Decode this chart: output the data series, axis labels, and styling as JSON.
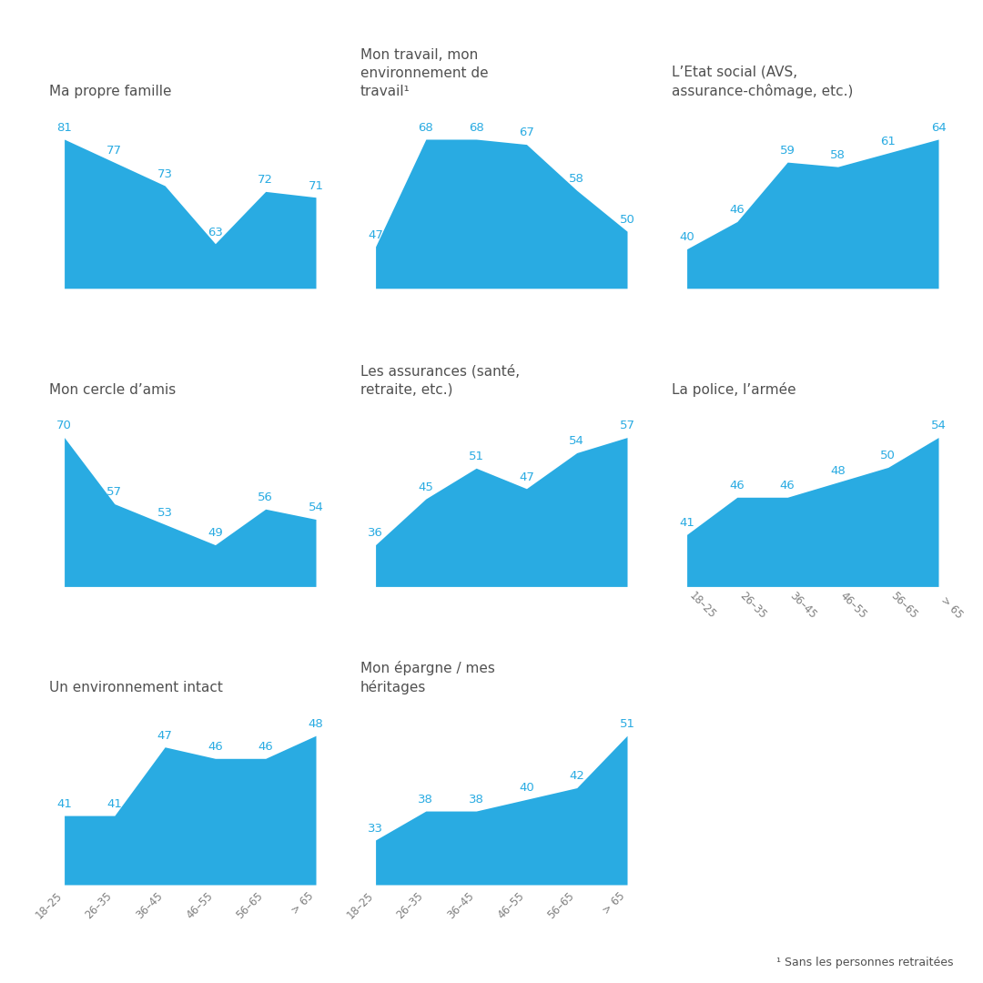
{
  "charts": [
    {
      "title": "Ma propre famille",
      "values": [
        81,
        77,
        73,
        63,
        72,
        71
      ],
      "row": 0,
      "col": 0
    },
    {
      "title": "Mon travail, mon\nenvironnement de\ntravail¹",
      "values": [
        47,
        68,
        68,
        67,
        58,
        50
      ],
      "row": 0,
      "col": 1
    },
    {
      "title": "L’Etat social (AVS,\nassurance-chômage, etc.)",
      "values": [
        40,
        46,
        59,
        58,
        61,
        64
      ],
      "row": 0,
      "col": 2
    },
    {
      "title": "Mon cercle d’amis",
      "values": [
        70,
        57,
        53,
        49,
        56,
        54
      ],
      "row": 1,
      "col": 0
    },
    {
      "title": "Les assurances (santé,\nretraite, etc.)",
      "values": [
        36,
        45,
        51,
        47,
        54,
        57
      ],
      "row": 1,
      "col": 1
    },
    {
      "title": "La police, l’armée",
      "values": [
        41,
        46,
        46,
        48,
        50,
        54
      ],
      "row": 1,
      "col": 2
    },
    {
      "title": "Un environnement intact",
      "values": [
        41,
        41,
        47,
        46,
        46,
        48
      ],
      "row": 2,
      "col": 0
    },
    {
      "title": "Mon épargne / mes\nhéritages",
      "values": [
        33,
        38,
        38,
        40,
        42,
        51
      ],
      "row": 2,
      "col": 1
    }
  ],
  "x_labels": [
    "18–25",
    "26–35",
    "36–45",
    "46–55",
    "56–65",
    "> 65"
  ],
  "fill_color": "#29ABE2",
  "text_color": "#29ABE2",
  "title_color": "#505050",
  "label_color": "#808080",
  "background_color": "#FFFFFF",
  "footnote": "¹ Sans les personnes retraitées",
  "value_fontsize": 9.5,
  "title_fontsize": 11,
  "label_fontsize": 8.5
}
